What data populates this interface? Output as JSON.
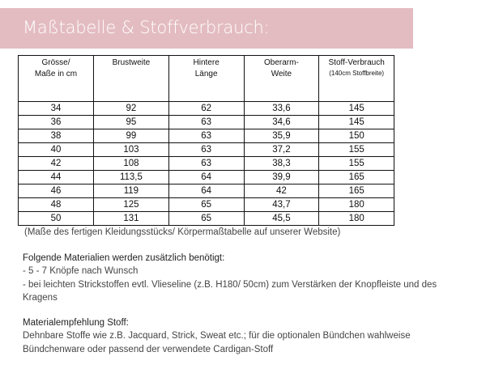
{
  "title": "Maßtabelle & Stoffverbrauch:",
  "banner_color": "#e3bcc1",
  "table": {
    "headers": [
      {
        "label": "Grösse/ Maße in cm"
      },
      {
        "label": "Brustweite"
      },
      {
        "label": "Hintere Länge"
      },
      {
        "label": "Oberarm-Weite"
      },
      {
        "label": "Stoff-Verbrauch",
        "sub": "(140cm Stoffbreite)"
      }
    ],
    "rows": [
      [
        "34",
        "92",
        "62",
        "33,6",
        "145"
      ],
      [
        "36",
        "95",
        "63",
        "34,6",
        "145"
      ],
      [
        "38",
        "99",
        "63",
        "35,9",
        "150"
      ],
      [
        "40",
        "103",
        "63",
        "37,2",
        "155"
      ],
      [
        "42",
        "108",
        "63",
        "38,3",
        "155"
      ],
      [
        "44",
        "113,5",
        "64",
        "39,9",
        "165"
      ],
      [
        "46",
        "119",
        "64",
        "42",
        "165"
      ],
      [
        "48",
        "125",
        "65",
        "43,7",
        "180"
      ],
      [
        "50",
        "131",
        "65",
        "45,5",
        "180"
      ]
    ]
  },
  "note": "(Maße des fertigen Kleidungsstücks/ Körpermaßtabelle auf unserer Website)",
  "materials": {
    "heading": "Folgende Materialien werden zusätzlich benötigt:",
    "items": [
      "- 5 - 7 Knöpfe nach Wunsch",
      "- bei leichten Strickstoffen evtl. Vlieseline (z.B. H180/ 50cm) zum Verstärken der Knopfleiste und des Kragens"
    ]
  },
  "fabric": {
    "heading": "Materialempfehlung Stoff:",
    "text": "Dehnbare Stoffe wie z.B. Jacquard, Strick, Sweat etc.; für die optionalen Bündchen wahlweise Bündchenware oder passend der verwendete Cardigan-Stoff"
  }
}
